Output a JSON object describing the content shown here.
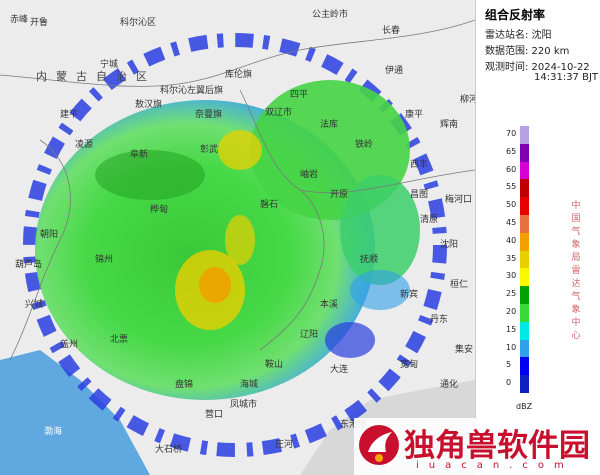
{
  "panel": {
    "title": "组合反射率",
    "station_line": "雷达站名: 沈阳",
    "range_line": "数据范围: 220 km",
    "time_line_1": "观测时间: 2024-10-22",
    "time_line_2": "14:31:37 BJT",
    "vertical_text": "中国气象局雷达气象中心"
  },
  "legend": {
    "unit": "dBZ",
    "levels": [
      {
        "value": "70",
        "color": "#b8a0e6"
      },
      {
        "value": "65",
        "color": "#8000b0"
      },
      {
        "value": "60",
        "color": "#d400d4"
      },
      {
        "value": "55",
        "color": "#c00000"
      },
      {
        "value": "50",
        "color": "#e80000"
      },
      {
        "value": "45",
        "color": "#e8703c"
      },
      {
        "value": "40",
        "color": "#f0a000"
      },
      {
        "value": "35",
        "color": "#e8d000"
      },
      {
        "value": "30",
        "color": "#f8f800"
      },
      {
        "value": "25",
        "color": "#00a000"
      },
      {
        "value": "20",
        "color": "#38d838"
      },
      {
        "value": "15",
        "color": "#00e8e8"
      },
      {
        "value": "10",
        "color": "#30a0e8"
      },
      {
        "value": "5",
        "color": "#0000f0"
      },
      {
        "value": "0",
        "color": "#1020c0"
      }
    ]
  },
  "map": {
    "province_label": "内蒙古自治区",
    "sea_label": "渤海",
    "places": [
      "开鲁",
      "科尔沁区",
      "科尔沁左翼后旗",
      "公主岭市",
      "长春",
      "伊通",
      "四平",
      "双辽市",
      "铁岭",
      "开原",
      "西丰",
      "清原",
      "抚顺",
      "沈阳",
      "本溪",
      "辽阳",
      "鞍山",
      "海城",
      "营口",
      "盘锦",
      "锦州",
      "阜新",
      "朝阳",
      "北票",
      "建平",
      "赤峰",
      "丹东",
      "凤城市",
      "宽甸",
      "新宾",
      "桓仁",
      "集安",
      "通化",
      "东港市",
      "庄河",
      "大石桥",
      "盖州",
      "葫芦岛",
      "兴城",
      "凌源",
      "宁城",
      "敖汉旗",
      "奈曼旗",
      "库伦旗",
      "彰武",
      "法库",
      "康平",
      "昌图",
      "梅河口",
      "辉南",
      "柳河",
      "磐石",
      "桦甸",
      "岫岩",
      "大连"
    ],
    "top_labels": [
      "开鲁",
      "科尔沁区",
      "科尔沁左翼后旗",
      "公主岭市",
      "长春"
    ]
  },
  "watermark": {
    "main": "独角兽软件园",
    "sub": "iuacan.com"
  }
}
